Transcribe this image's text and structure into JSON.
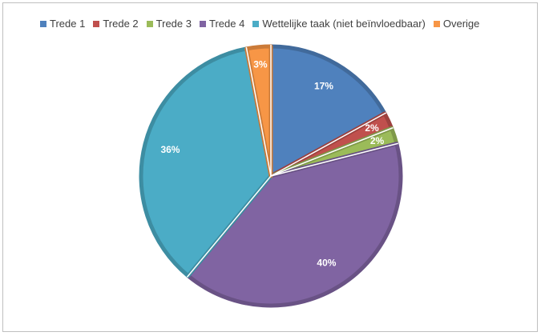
{
  "chart_data": {
    "type": "pie",
    "title": "",
    "legend_position": "top",
    "slices": [
      {
        "name": "Trede 1",
        "value": 17,
        "label": "17%",
        "color": "#4f81bd"
      },
      {
        "name": "Trede 2",
        "value": 2,
        "label": "2%",
        "color": "#c0504d"
      },
      {
        "name": "Trede 3",
        "value": 2,
        "label": "2%",
        "color": "#9bbb59"
      },
      {
        "name": "Trede 4",
        "value": 40,
        "label": "40%",
        "color": "#8064a2"
      },
      {
        "name": "Wettelijke taak (niet beïnvloedbaar)",
        "value": 36,
        "label": "36%",
        "color": "#4bacc6"
      },
      {
        "name": "Overige",
        "value": 3,
        "label": "3%",
        "color": "#f79646"
      }
    ]
  }
}
